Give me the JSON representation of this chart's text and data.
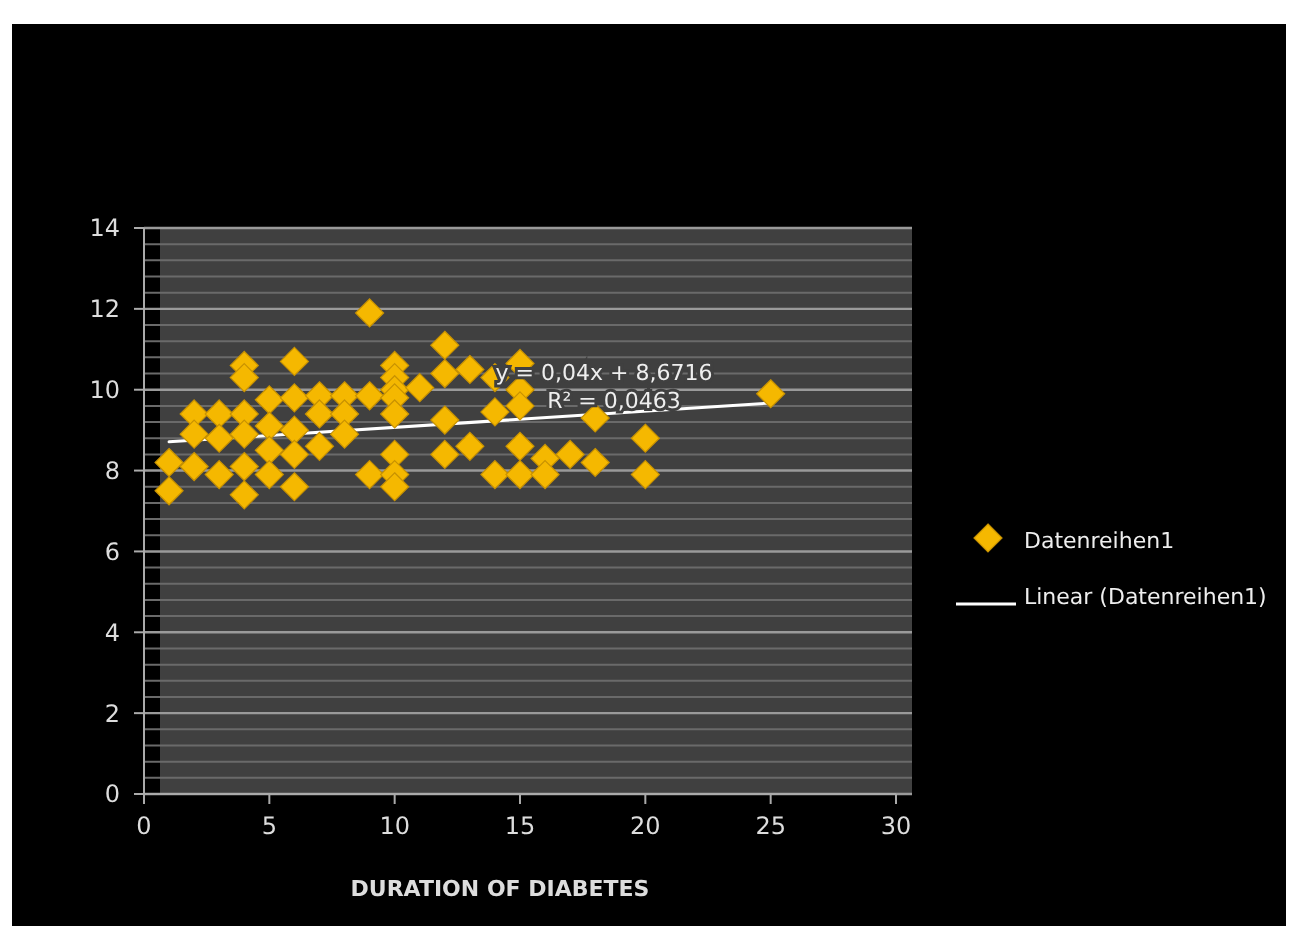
{
  "chart_data": {
    "type": "scatter",
    "xlabel": "DURATION OF DIABETES",
    "xlim": [
      0,
      30
    ],
    "xticks": [
      0,
      5,
      10,
      15,
      20,
      25,
      30
    ],
    "ylim": [
      0,
      14
    ],
    "yticks": [
      0,
      2,
      4,
      6,
      8,
      10,
      12,
      14
    ],
    "grid": "y",
    "legend": "right",
    "annotations": [
      "y = 0,04x + 8,6716",
      "R² = 0,0463"
    ],
    "series": [
      {
        "name": "Datenreihen1",
        "marker": "diamond",
        "color": "#f5b800",
        "x": [
          1,
          1,
          2,
          2,
          2,
          3,
          3,
          3,
          4,
          4,
          4,
          4,
          4,
          4,
          5,
          5,
          5,
          5,
          6,
          6,
          6,
          6,
          6,
          7,
          7,
          7,
          8,
          8,
          8,
          9,
          9,
          9,
          10,
          10,
          10,
          10,
          10,
          10,
          10,
          10,
          11,
          12,
          12,
          12,
          12,
          13,
          13,
          14,
          14,
          14,
          15,
          15,
          15,
          15,
          15,
          16,
          16,
          17,
          18,
          18,
          20,
          20,
          25
        ],
        "values": [
          7.5,
          8.2,
          9.4,
          8.9,
          8.1,
          9.4,
          8.8,
          7.9,
          10.6,
          10.3,
          9.4,
          8.9,
          8.1,
          7.4,
          9.75,
          9.1,
          8.5,
          7.9,
          10.7,
          9.8,
          9.0,
          8.4,
          7.6,
          9.85,
          9.4,
          8.6,
          9.85,
          9.4,
          8.9,
          11.9,
          9.85,
          7.9,
          10.6,
          10.3,
          10.0,
          9.8,
          9.4,
          8.4,
          7.9,
          7.6,
          10.05,
          11.1,
          10.4,
          9.25,
          8.4,
          10.5,
          8.6,
          10.3,
          9.45,
          7.9,
          10.65,
          10.0,
          9.6,
          8.6,
          7.9,
          8.3,
          7.9,
          8.4,
          9.3,
          8.2,
          8.8,
          7.9,
          9.9
        ]
      },
      {
        "name": "Linear (Datenreihen1)",
        "type": "line",
        "line_style": "solid",
        "color": "#ffffff",
        "x": [
          1,
          25
        ],
        "values": [
          8.71,
          9.67
        ]
      }
    ]
  }
}
